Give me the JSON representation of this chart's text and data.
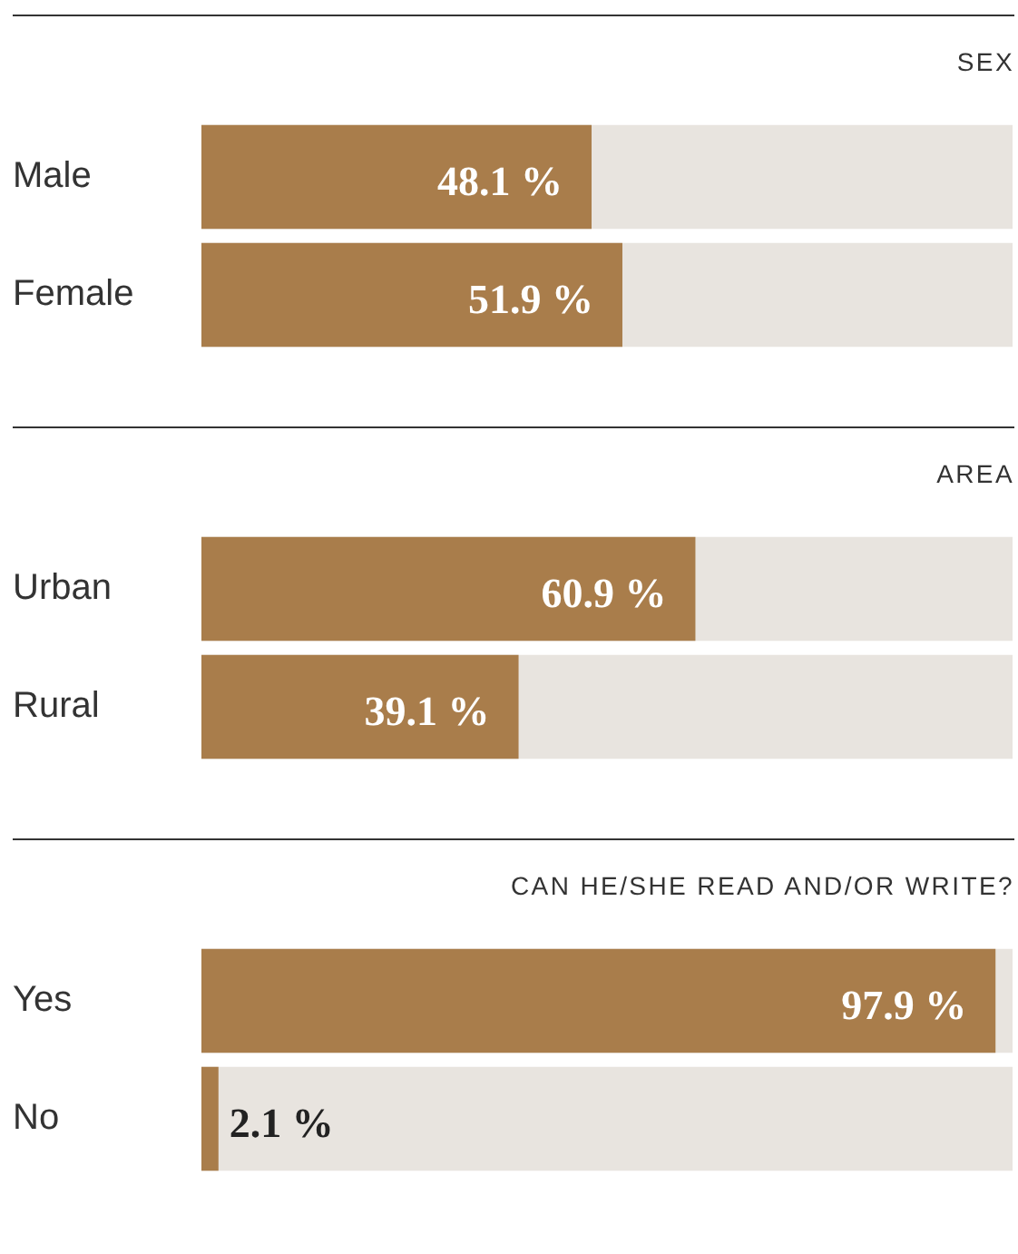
{
  "chart_data": [
    {
      "type": "bar",
      "orientation": "horizontal",
      "title": "SEX",
      "categories": [
        "Male",
        "Female"
      ],
      "values": [
        48.1,
        51.9
      ],
      "value_labels": [
        "48.1 %",
        "51.9 %"
      ],
      "color": "#a97d4b",
      "xlim": [
        0,
        100
      ],
      "tick_labels": "y"
    },
    {
      "type": "bar",
      "orientation": "horizontal",
      "title": "AREA",
      "categories": [
        "Urban",
        "Rural"
      ],
      "values": [
        60.9,
        39.1
      ],
      "value_labels": [
        "60.9 %",
        "39.1 %"
      ],
      "color": "#a97d4b",
      "xlim": [
        0,
        100
      ],
      "tick_labels": "y"
    },
    {
      "type": "bar",
      "orientation": "horizontal",
      "title": "CAN HE/SHE READ AND/OR WRITE?",
      "categories": [
        "Yes",
        "No"
      ],
      "values": [
        97.9,
        2.1
      ],
      "value_labels": [
        "97.9 %",
        "2.1 %"
      ],
      "color": "#a97d4b",
      "xlim": [
        0,
        100
      ],
      "tick_labels": "y"
    }
  ]
}
